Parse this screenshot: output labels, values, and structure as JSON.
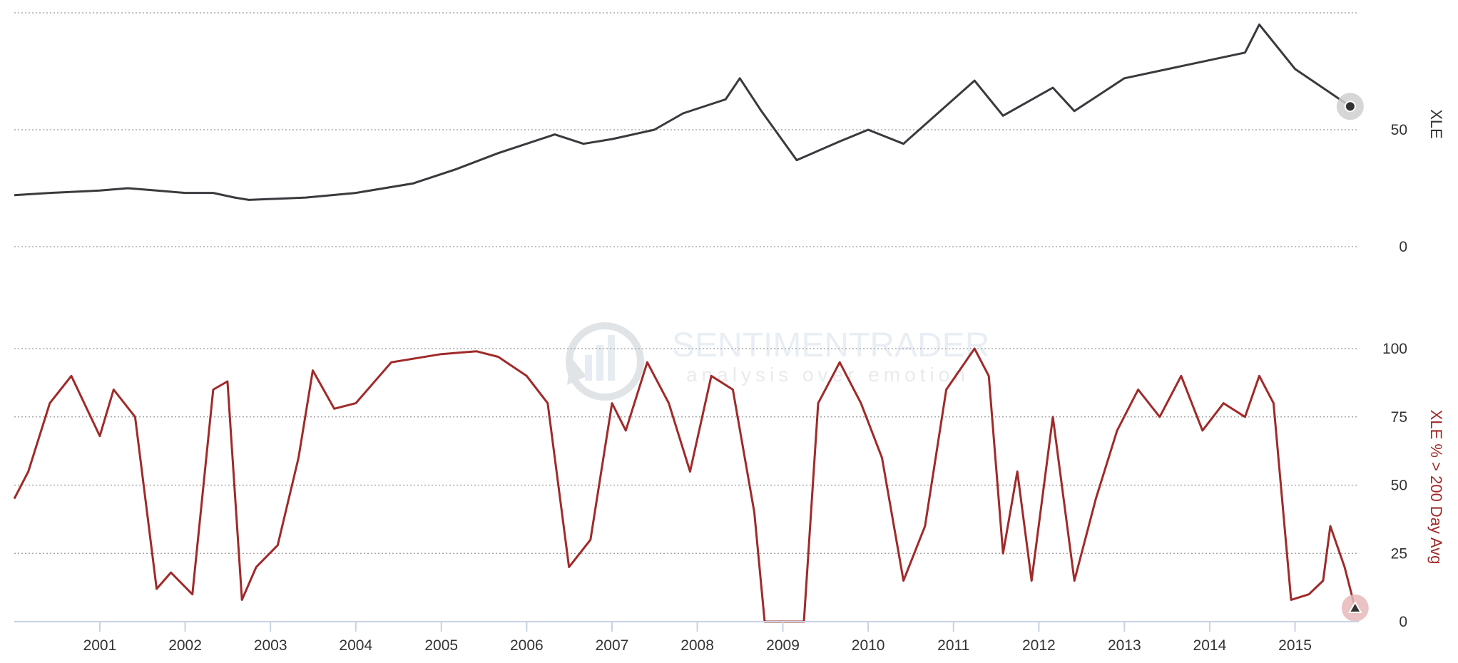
{
  "chart_data": [
    {
      "type": "line",
      "title": "",
      "ylabel": "XLE",
      "ylim": [
        0,
        100
      ],
      "y_ticks": [
        0,
        50
      ],
      "grid": true,
      "x_ticks": [
        "2001",
        "2002",
        "2003",
        "2004",
        "2005",
        "2006",
        "2007",
        "2008",
        "2009",
        "2010",
        "2011",
        "2012",
        "2013",
        "2014",
        "2015"
      ],
      "series": [
        {
          "color": "#3a3a3e",
          "end_marker": "circle",
          "x": [
            "2000-01-01",
            "2000-06-01",
            "2001-01-01",
            "2001-05-01",
            "2001-09-01",
            "2002-01-01",
            "2002-05-01",
            "2002-08-01",
            "2002-10-01",
            "2003-06-01",
            "2004-01-01",
            "2004-09-01",
            "2005-03-01",
            "2005-09-01",
            "2006-05-01",
            "2006-09-01",
            "2007-01-01",
            "2007-07-01",
            "2007-11-01",
            "2008-05-01",
            "2008-07-01",
            "2008-10-01",
            "2009-03-01",
            "2009-09-01",
            "2010-01-01",
            "2010-06-01",
            "2011-04-01",
            "2011-08-01",
            "2012-03-01",
            "2012-06-01",
            "2013-01-01",
            "2014-06-01",
            "2014-08-01",
            "2015-01-01",
            "2015-08-25"
          ],
          "y": [
            22,
            23,
            24,
            25,
            24,
            23,
            23,
            21,
            20,
            21,
            23,
            27,
            33,
            40,
            48,
            44,
            46,
            50,
            57,
            63,
            72,
            58,
            37,
            45,
            50,
            44,
            71,
            56,
            68,
            58,
            72,
            83,
            95,
            76,
            60
          ]
        }
      ]
    },
    {
      "type": "line",
      "title": "",
      "ylabel": "XLE % > 200 Day Avg",
      "ylim": [
        0,
        100
      ],
      "y_ticks": [
        0,
        25,
        50,
        75,
        100
      ],
      "grid": true,
      "x_ticks": [
        "2001",
        "2002",
        "2003",
        "2004",
        "2005",
        "2006",
        "2007",
        "2008",
        "2009",
        "2010",
        "2011",
        "2012",
        "2013",
        "2014",
        "2015"
      ],
      "series": [
        {
          "color": "#a02a2a",
          "end_marker": "triangle",
          "x": [
            "2000-01-01",
            "2000-03-01",
            "2000-06-01",
            "2000-09-01",
            "2001-01-01",
            "2001-03-01",
            "2001-06-01",
            "2001-09-01",
            "2001-11-01",
            "2002-02-01",
            "2002-05-01",
            "2002-07-01",
            "2002-09-01",
            "2002-11-01",
            "2003-02-01",
            "2003-05-01",
            "2003-07-01",
            "2003-10-01",
            "2004-01-01",
            "2004-06-01",
            "2005-01-01",
            "2005-06-01",
            "2005-09-01",
            "2006-01-01",
            "2006-04-01",
            "2006-07-01",
            "2006-10-01",
            "2007-01-01",
            "2007-03-01",
            "2007-06-01",
            "2007-09-01",
            "2007-12-01",
            "2008-03-01",
            "2008-06-01",
            "2008-09-01",
            "2008-10-15",
            "2009-04-01",
            "2009-06-01",
            "2009-09-01",
            "2009-12-01",
            "2010-03-01",
            "2010-06-01",
            "2010-09-01",
            "2010-12-01",
            "2011-04-01",
            "2011-06-01",
            "2011-08-01",
            "2011-10-01",
            "2011-12-01",
            "2012-03-01",
            "2012-06-01",
            "2012-09-01",
            "2012-12-01",
            "2013-03-01",
            "2013-06-01",
            "2013-09-01",
            "2013-12-01",
            "2014-03-01",
            "2014-06-01",
            "2014-08-01",
            "2014-10-01",
            "2014-12-15",
            "2015-03-01",
            "2015-05-01",
            "2015-06-01",
            "2015-08-01",
            "2015-09-15"
          ],
          "y": [
            45,
            55,
            80,
            90,
            68,
            85,
            75,
            12,
            18,
            10,
            85,
            88,
            8,
            20,
            28,
            60,
            92,
            78,
            80,
            95,
            98,
            99,
            97,
            90,
            80,
            20,
            30,
            80,
            70,
            95,
            80,
            55,
            90,
            85,
            40,
            0,
            0,
            80,
            95,
            80,
            60,
            15,
            35,
            85,
            100,
            90,
            25,
            55,
            15,
            75,
            15,
            45,
            70,
            85,
            75,
            90,
            70,
            80,
            75,
            90,
            80,
            8,
            10,
            15,
            35,
            20,
            5
          ]
        }
      ]
    }
  ],
  "watermark": {
    "brand": "SENTIMENTRADER",
    "tagline": "analysis over emotion"
  }
}
